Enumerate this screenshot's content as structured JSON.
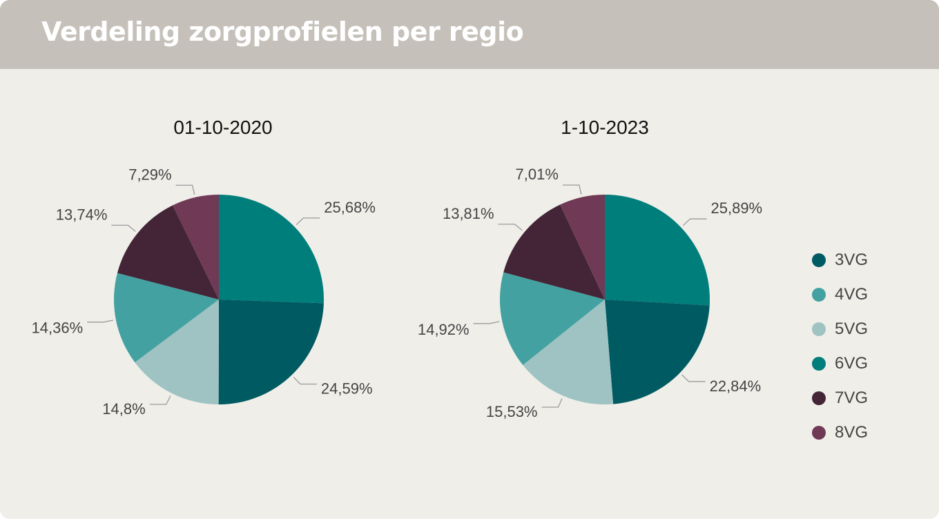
{
  "header": {
    "title": "Verdeling zorgprofielen per regio"
  },
  "legend": {
    "items": [
      {
        "label": "3VG",
        "color": "#005a62"
      },
      {
        "label": "4VG",
        "color": "#43a2a1"
      },
      {
        "label": "5VG",
        "color": "#9fc3c2"
      },
      {
        "label": "6VG",
        "color": "#007e7b"
      },
      {
        "label": "7VG",
        "color": "#432537"
      },
      {
        "label": "8VG",
        "color": "#703a57"
      }
    ]
  },
  "chart_data": [
    {
      "type": "pie",
      "title": "01-10-2020",
      "slices": [
        {
          "category": "6VG",
          "value": 25.68,
          "label": "25,68%"
        },
        {
          "category": "3VG",
          "value": 24.59,
          "label": "24,59%"
        },
        {
          "category": "5VG",
          "value": 14.8,
          "label": "14,8%"
        },
        {
          "category": "4VG",
          "value": 14.36,
          "label": "14,36%"
        },
        {
          "category": "7VG",
          "value": 13.74,
          "label": "13,74%"
        },
        {
          "category": "8VG",
          "value": 7.29,
          "label": "7,29%"
        }
      ]
    },
    {
      "type": "pie",
      "title": "1-10-2023",
      "slices": [
        {
          "category": "6VG",
          "value": 25.89,
          "label": "25,89%"
        },
        {
          "category": "3VG",
          "value": 22.84,
          "label": "22,84%"
        },
        {
          "category": "5VG",
          "value": 15.53,
          "label": "15,53%"
        },
        {
          "category": "4VG",
          "value": 14.92,
          "label": "14,92%"
        },
        {
          "category": "7VG",
          "value": 13.81,
          "label": "13,81%"
        },
        {
          "category": "8VG",
          "value": 7.01,
          "label": "7,01%"
        }
      ]
    }
  ]
}
